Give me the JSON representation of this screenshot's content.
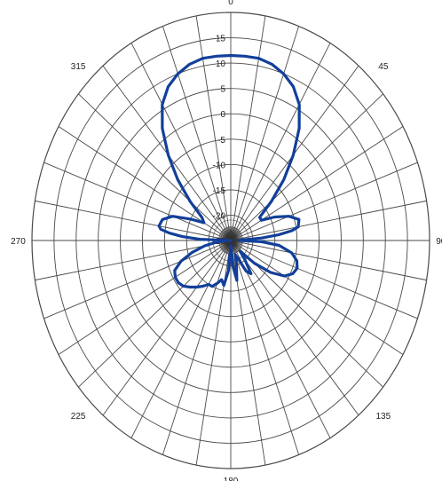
{
  "chart_data": {
    "type": "polar-line",
    "title": "",
    "angle_ticks": [
      "0",
      "45",
      "90",
      "135",
      "180",
      "225",
      "270",
      "315"
    ],
    "angle_tick_values": [
      0,
      45,
      90,
      135,
      180,
      225,
      270,
      315
    ],
    "radial_ticks": [
      "15",
      "10",
      "5",
      "0",
      "-5",
      "-10",
      "-15",
      "-20",
      "-25"
    ],
    "radial_tick_values": [
      15,
      10,
      5,
      0,
      -5,
      -10,
      -15,
      -20,
      -25
    ],
    "rlim": [
      -25,
      20
    ],
    "grid": true,
    "series": [
      {
        "color": "#123f9a",
        "angles": [
          -90,
          -88,
          -86,
          -84,
          -82,
          -80,
          -75,
          -70,
          -65,
          -60,
          -55,
          -50,
          -45,
          -40,
          -35,
          -30,
          -25,
          -20,
          -15,
          -10,
          -5,
          0,
          5,
          10,
          15,
          20,
          25,
          30,
          35,
          40,
          45,
          50,
          55,
          60,
          65,
          70,
          75,
          80,
          82,
          84,
          86,
          88,
          90,
          92,
          95,
          100,
          105,
          110,
          115,
          120,
          125,
          130,
          135,
          140,
          145,
          150,
          155,
          160,
          165,
          170,
          175,
          180,
          185,
          190,
          195,
          200,
          205,
          210,
          215,
          220,
          225,
          230,
          235,
          240,
          245,
          250,
          255,
          260,
          265,
          270
        ],
        "values": [
          -25,
          -18,
          -14,
          -11,
          -9,
          -8.5,
          -9,
          -11,
          -15,
          -18,
          -17,
          -13,
          -8,
          -3,
          2,
          6,
          8.5,
          10,
          11,
          11.5,
          11.5,
          11.5,
          11.5,
          11.5,
          11,
          10,
          8.5,
          6,
          2,
          -3,
          -8,
          -13,
          -17,
          -17,
          -14,
          -11,
          -9,
          -9.5,
          -11,
          -14,
          -18,
          -23,
          -23,
          -18,
          -14,
          -11,
          -9.5,
          -9,
          -9.5,
          -11,
          -14,
          -18,
          -22,
          -20,
          -17,
          -18,
          -21,
          -22,
          -20,
          -17,
          -20,
          -24,
          -19,
          -16,
          -17,
          -16,
          -15,
          -15,
          -14,
          -13,
          -12,
          -11,
          -10.5,
          -10.5,
          -11,
          -13,
          -16,
          -19,
          -22,
          -24
        ]
      }
    ]
  }
}
